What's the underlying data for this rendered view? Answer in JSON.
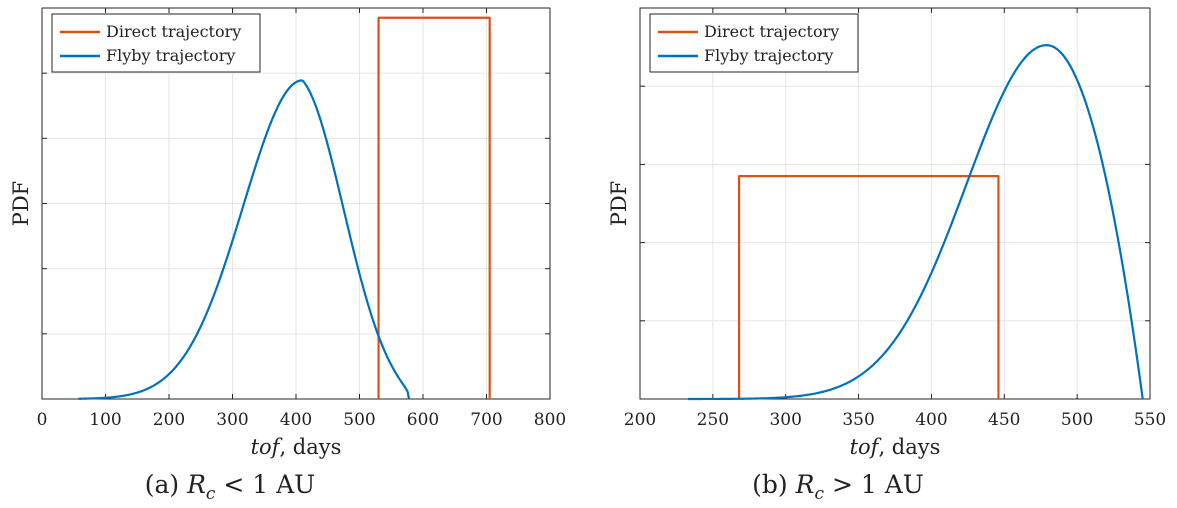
{
  "chart_data": [
    {
      "type": "line",
      "caption": "(a) R_c < 1 AU",
      "caption_prefix": "(a)",
      "caption_math": "R",
      "caption_sub": "c",
      "caption_rel": " < 1 AU",
      "xlabel": "tof",
      "xlabel_suffix": ", days",
      "ylabel": "PDF",
      "xlim": [
        0,
        800
      ],
      "ylim": [
        0,
        1.0
      ],
      "xticks": [
        0,
        100,
        200,
        300,
        400,
        500,
        600,
        700,
        800
      ],
      "yticks_unlabeled": [
        0.1667,
        0.3333,
        0.5,
        0.6667,
        0.8333
      ],
      "grid": true,
      "legend": "top-left",
      "series": [
        {
          "name": "Direct trajectory",
          "color": "#D95319",
          "kind": "uniform",
          "x_start": 530,
          "x_end": 705,
          "height": 0.975
        },
        {
          "name": "Flyby trajectory",
          "color": "#0072BD",
          "kind": "bell",
          "x_min": 57,
          "x_max": 578,
          "peak_x": 410,
          "peak_y": 0.815,
          "sigma_left": 93,
          "sigma_right": 78
        }
      ]
    },
    {
      "type": "line",
      "caption": "(b) R_c > 1 AU",
      "caption_prefix": "(b)",
      "caption_math": "R",
      "caption_sub": "c",
      "caption_rel": " > 1 AU",
      "xlabel": "tof",
      "xlabel_suffix": ", days",
      "ylabel": "PDF",
      "xlim": [
        200,
        550
      ],
      "ylim": [
        0,
        1.0
      ],
      "xticks": [
        200,
        250,
        300,
        350,
        400,
        450,
        500,
        550
      ],
      "yticks_unlabeled": [
        0.2,
        0.4,
        0.6,
        0.8
      ],
      "grid": true,
      "legend": "top-left",
      "series": [
        {
          "name": "Direct trajectory",
          "color": "#D95319",
          "kind": "uniform",
          "x_start": 268,
          "x_end": 446,
          "height": 0.57
        },
        {
          "name": "Flyby trajectory",
          "color": "#0072BD",
          "kind": "skewed",
          "x_min": 233,
          "x_max": 545,
          "peak_x": 479,
          "peak_y": 0.905,
          "sigma_left": 55,
          "right_power": 1.5
        }
      ]
    }
  ]
}
